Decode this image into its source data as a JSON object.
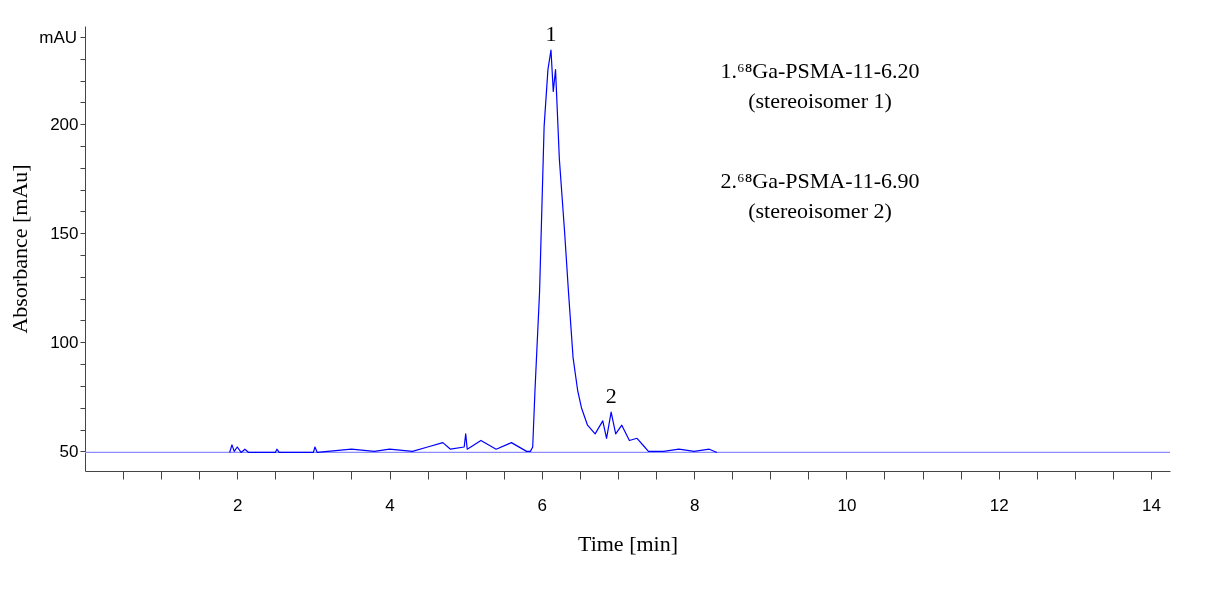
{
  "chart_data": {
    "type": "line",
    "xlabel": "Time [min]",
    "ylabel": "Absorbance [mAu]",
    "xlim": [
      0,
      14.25
    ],
    "ylim": [
      41,
      245
    ],
    "xticks": [
      {
        "value": 0.5,
        "label": null
      },
      {
        "value": 1,
        "label": null
      },
      {
        "value": 1.5,
        "label": null
      },
      2,
      {
        "value": 2.5,
        "label": null
      },
      {
        "value": 3,
        "label": null
      },
      {
        "value": 3.5,
        "label": null
      },
      4,
      {
        "value": 4.5,
        "label": null
      },
      {
        "value": 5,
        "label": null
      },
      {
        "value": 5.5,
        "label": null
      },
      6,
      {
        "value": 6.5,
        "label": null
      },
      {
        "value": 7,
        "label": null
      },
      {
        "value": 7.5,
        "label": null
      },
      8,
      {
        "value": 8.5,
        "label": null
      },
      {
        "value": 9,
        "label": null
      },
      {
        "value": 9.5,
        "label": null
      },
      10,
      {
        "value": 10.5,
        "label": null
      },
      {
        "value": 11,
        "label": null
      },
      {
        "value": 11.5,
        "label": null
      },
      12,
      {
        "value": 12.5,
        "label": null
      },
      {
        "value": 13,
        "label": null
      },
      {
        "value": 13.5,
        "label": null
      },
      14
    ],
    "yticks": [
      50,
      {
        "value": 60,
        "label": null
      },
      {
        "value": 70,
        "label": null
      },
      {
        "value": 80,
        "label": null
      },
      {
        "value": 90,
        "label": null
      },
      100,
      {
        "value": 110,
        "label": null
      },
      {
        "value": 120,
        "label": null
      },
      {
        "value": 130,
        "label": null
      },
      {
        "value": 140,
        "label": null
      },
      150,
      {
        "value": 160,
        "label": null
      },
      {
        "value": 170,
        "label": null
      },
      {
        "value": 180,
        "label": null
      },
      {
        "value": 190,
        "label": null
      },
      200,
      {
        "value": 210,
        "label": null
      },
      {
        "value": 220,
        "label": null
      },
      {
        "value": 230,
        "label": null
      },
      {
        "value": 240,
        "label": null
      }
    ],
    "grid": false,
    "legend": false,
    "marker": "none",
    "line_style": "solid",
    "series": [
      {
        "color": "#8c8cff",
        "x": [
          0,
          14.25
        ],
        "values": [
          49.5,
          49.5
        ]
      },
      {
        "color": "#0000ff",
        "x": [
          1.9,
          1.93,
          1.96,
          2.0,
          2.05,
          2.1,
          2.15,
          2.5,
          2.52,
          2.55,
          3.0,
          3.02,
          3.05,
          3.5,
          3.8,
          4.0,
          4.3,
          4.5,
          4.7,
          4.8,
          4.98,
          5.0,
          5.02,
          5.2,
          5.4,
          5.6,
          5.8,
          5.85,
          5.88,
          5.91,
          5.97,
          6.03,
          6.08,
          6.12,
          6.15,
          6.18,
          6.23,
          6.3,
          6.35,
          6.41,
          6.47,
          6.52,
          6.6,
          6.7,
          6.8,
          6.85,
          6.91,
          6.97,
          7.05,
          7.15,
          7.25,
          7.35,
          7.4,
          7.6,
          7.8,
          8.0,
          8.2,
          8.3
        ],
        "values": [
          49.5,
          53,
          50,
          52,
          49.5,
          51,
          49.5,
          49.5,
          51,
          49.5,
          49.5,
          52,
          49.5,
          51,
          50,
          51,
          50,
          52,
          54,
          51,
          52,
          58,
          51,
          55,
          51,
          54,
          50,
          50,
          52,
          78,
          123,
          199,
          225,
          234,
          215,
          225,
          184,
          150,
          123,
          93,
          78,
          70,
          62,
          58,
          64,
          56,
          68,
          58,
          62,
          55,
          56,
          52,
          50,
          50,
          51,
          50,
          51,
          49.5
        ]
      }
    ],
    "annotations": [
      "mAU",
      "1.⁶⁸Ga-PSMA-11-6.20\n(stereoisomer 1)",
      "2.⁶⁸Ga-PSMA-11-6.90\n(stereoisomer 2)",
      {
        "text": "1",
        "x": 6.12,
        "y": 234
      },
      {
        "text": "2",
        "x": 6.91,
        "y": 68
      }
    ]
  }
}
